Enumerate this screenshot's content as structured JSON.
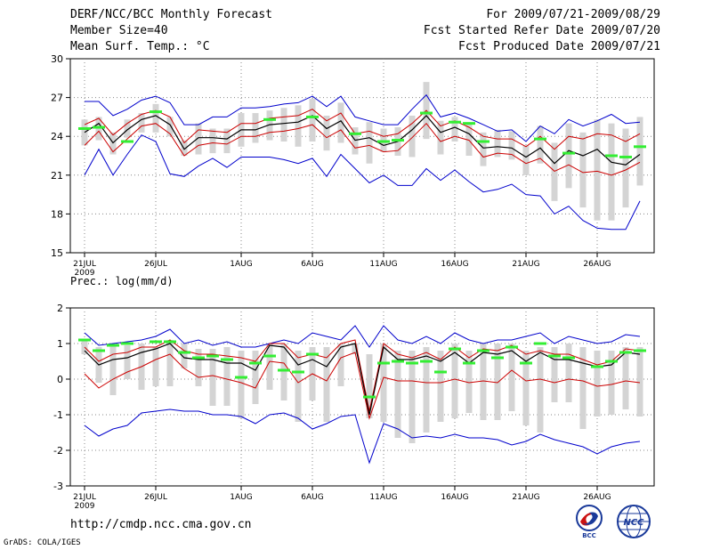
{
  "header": {
    "line1_left": "DERF/NCC/BCC Monthly Forecast",
    "line2_left": "Member Size=40",
    "line3_left": "Mean Surf. Temp.: °C",
    "line1_right": "For 2009/07/21-2009/08/29",
    "line2_right": "Fcst Started Refer Date 2009/07/20",
    "line3_right": "Fcst Produced Date 2009/07/21"
  },
  "prec_label": "Prec.: log(mm/d)",
  "footer": {
    "url": "http://cmdp.ncc.cma.gov.cn",
    "credit": "GrADS: COLA/IGES"
  },
  "logos": {
    "bcc": "BCC",
    "ncc": "NCC"
  },
  "colors": {
    "envelope": "#0000cc",
    "spread": "#cc0000",
    "mean": "#000000",
    "box": "#d4d4d4",
    "obs": "#33ee33",
    "grid": "#888888"
  },
  "chart_data": [
    {
      "type": "line",
      "title": "Mean Surf. Temp.: °C",
      "x_ticks": [
        "21JUL",
        "26JUL",
        "1AUG",
        "6AUG",
        "11AUG",
        "16AUG",
        "21AUG",
        "26AUG"
      ],
      "x_tick_day": [
        0,
        5,
        11,
        16,
        21,
        26,
        31,
        36
      ],
      "x_year": "2009",
      "n_days": 40,
      "ylim": [
        15,
        30
      ],
      "yticks": [
        15,
        18,
        21,
        24,
        27,
        30
      ],
      "series": [
        {
          "name": "max",
          "values": [
            26.7,
            26.7,
            25.6,
            26.1,
            26.8,
            27.1,
            26.6,
            24.9,
            24.9,
            25.5,
            25.5,
            26.2,
            26.2,
            26.3,
            26.5,
            26.6,
            27.1,
            26.3,
            27.1,
            25.5,
            25.2,
            24.9,
            24.9,
            26.1,
            27.2,
            25.5,
            25.8,
            25.4,
            24.9,
            24.4,
            24.5,
            23.6,
            24.8,
            24.2,
            25.3,
            24.8,
            25.2,
            25.7,
            25.0,
            25.1
          ]
        },
        {
          "name": "upper",
          "values": [
            24.9,
            25.4,
            24.1,
            25.0,
            25.7,
            26.0,
            25.5,
            23.5,
            24.5,
            24.4,
            24.3,
            25.0,
            25.0,
            25.4,
            25.5,
            25.6,
            26.1,
            25.2,
            25.8,
            24.2,
            24.4,
            24.0,
            24.2,
            25.0,
            26.0,
            24.8,
            25.2,
            24.7,
            24.0,
            23.8,
            23.8,
            23.2,
            24.0,
            23.0,
            24.0,
            23.8,
            24.2,
            24.1,
            23.6,
            24.2
          ]
        },
        {
          "name": "mean",
          "values": [
            24.3,
            25.0,
            23.5,
            24.5,
            25.3,
            25.6,
            24.9,
            23.0,
            23.9,
            23.9,
            23.8,
            24.5,
            24.5,
            24.9,
            25.0,
            25.1,
            25.6,
            24.6,
            25.2,
            23.7,
            23.9,
            23.3,
            23.6,
            24.5,
            25.6,
            24.3,
            24.7,
            24.2,
            23.1,
            23.2,
            23.1,
            22.4,
            23.1,
            21.9,
            22.9,
            22.5,
            23.0,
            22.0,
            21.8,
            22.6
          ]
        },
        {
          "name": "lower",
          "values": [
            23.3,
            24.4,
            22.8,
            23.8,
            24.8,
            25.0,
            24.2,
            22.5,
            23.3,
            23.5,
            23.4,
            24.0,
            24.0,
            24.3,
            24.4,
            24.6,
            24.9,
            23.9,
            24.5,
            23.1,
            23.3,
            22.8,
            22.9,
            23.9,
            25.0,
            23.6,
            24.0,
            23.7,
            22.4,
            22.7,
            22.6,
            21.9,
            22.3,
            21.3,
            21.8,
            21.2,
            21.3,
            21.0,
            21.4,
            22.0
          ]
        },
        {
          "name": "min",
          "values": [
            21.0,
            23.0,
            21.0,
            22.6,
            24.1,
            23.6,
            21.1,
            20.9,
            21.7,
            22.3,
            21.6,
            22.4,
            22.4,
            22.4,
            22.2,
            21.9,
            22.3,
            20.9,
            22.6,
            21.5,
            20.4,
            21.0,
            20.2,
            20.2,
            21.5,
            20.6,
            21.4,
            20.5,
            19.7,
            19.9,
            20.3,
            19.5,
            19.4,
            18.0,
            18.6,
            17.5,
            16.9,
            16.8,
            16.8,
            19.0
          ]
        },
        {
          "name": "box_high",
          "values": [
            25.3,
            25.5,
            24.3,
            25.3,
            25.8,
            26.5,
            25.5,
            23.7,
            25.0,
            24.6,
            24.6,
            25.8,
            25.8,
            26.0,
            26.2,
            26.4,
            26.9,
            25.6,
            26.6,
            24.7,
            25.1,
            24.6,
            24.7,
            25.6,
            28.2,
            25.2,
            25.5,
            25.0,
            24.3,
            24.5,
            24.4,
            23.3,
            24.8,
            23.5,
            25.0,
            24.3,
            25.3,
            25.0,
            24.6,
            25.5
          ]
        },
        {
          "name": "box_low",
          "values": [
            23.3,
            23.7,
            22.6,
            23.9,
            24.3,
            24.3,
            24.0,
            22.5,
            22.6,
            22.7,
            22.7,
            23.2,
            23.5,
            23.7,
            23.6,
            23.2,
            23.6,
            22.9,
            23.5,
            22.6,
            21.9,
            22.8,
            22.5,
            22.4,
            23.8,
            22.6,
            23.6,
            22.5,
            21.7,
            22.4,
            22.2,
            21.0,
            21.9,
            19.0,
            20.0,
            18.5,
            17.5,
            17.5,
            18.5,
            20.2
          ]
        },
        {
          "name": "observed",
          "values": [
            24.6,
            24.7,
            null,
            23.6,
            null,
            25.9,
            null,
            null,
            null,
            null,
            null,
            null,
            null,
            25.3,
            null,
            null,
            25.5,
            null,
            null,
            24.2,
            null,
            23.6,
            23.7,
            null,
            25.8,
            null,
            25.1,
            25.0,
            23.6,
            null,
            null,
            null,
            23.8,
            null,
            22.7,
            null,
            null,
            22.5,
            22.4,
            23.2
          ]
        }
      ]
    },
    {
      "type": "line",
      "title": "Prec.: log(mm/d)",
      "x_ticks": [
        "21JUL",
        "26JUL",
        "1AUG",
        "6AUG",
        "11AUG",
        "16AUG",
        "21AUG",
        "26AUG"
      ],
      "x_tick_day": [
        0,
        5,
        11,
        16,
        21,
        26,
        31,
        36
      ],
      "x_year": "2009",
      "n_days": 40,
      "ylim": [
        -3,
        2
      ],
      "yticks": [
        -3,
        -2,
        -1,
        0,
        1,
        2
      ],
      "series": [
        {
          "name": "max",
          "values": [
            1.3,
            0.95,
            1.0,
            1.05,
            1.1,
            1.2,
            1.4,
            1.0,
            1.1,
            0.95,
            1.05,
            0.9,
            0.9,
            1.0,
            1.1,
            1.0,
            1.3,
            1.2,
            1.1,
            1.5,
            0.9,
            1.5,
            1.1,
            1.0,
            1.2,
            1.0,
            1.3,
            1.1,
            1.0,
            1.1,
            1.1,
            1.2,
            1.3,
            1.0,
            1.2,
            1.1,
            1.0,
            1.05,
            1.25,
            1.2
          ]
        },
        {
          "name": "upper",
          "values": [
            0.9,
            0.5,
            0.7,
            0.75,
            0.9,
            0.9,
            1.1,
            0.8,
            0.7,
            0.7,
            0.65,
            0.6,
            0.5,
            1.0,
            1.0,
            0.6,
            0.7,
            0.6,
            1.0,
            1.1,
            -0.9,
            1.0,
            0.7,
            0.6,
            0.75,
            0.55,
            0.9,
            0.6,
            0.85,
            0.8,
            0.95,
            0.7,
            0.8,
            0.7,
            0.7,
            0.55,
            0.4,
            0.5,
            0.85,
            0.8
          ]
        },
        {
          "name": "mean",
          "values": [
            0.8,
            0.4,
            0.55,
            0.6,
            0.75,
            0.85,
            1.0,
            0.6,
            0.55,
            0.55,
            0.45,
            0.45,
            0.25,
            0.95,
            0.9,
            0.4,
            0.55,
            0.35,
            0.9,
            1.0,
            -1.0,
            0.9,
            0.55,
            0.55,
            0.65,
            0.5,
            0.75,
            0.45,
            0.75,
            0.7,
            0.8,
            0.5,
            0.75,
            0.55,
            0.55,
            0.45,
            0.35,
            0.4,
            0.75,
            0.7
          ]
        },
        {
          "name": "lower",
          "values": [
            0.15,
            -0.25,
            0.0,
            0.2,
            0.35,
            0.55,
            0.7,
            0.3,
            0.05,
            0.1,
            0.0,
            -0.1,
            -0.25,
            0.5,
            0.45,
            -0.1,
            0.15,
            -0.05,
            0.6,
            0.75,
            -1.1,
            0.05,
            -0.05,
            -0.05,
            -0.1,
            -0.1,
            0.0,
            -0.1,
            -0.05,
            -0.1,
            0.25,
            -0.05,
            0.0,
            -0.1,
            0.0,
            -0.05,
            -0.2,
            -0.15,
            -0.05,
            -0.1
          ]
        },
        {
          "name": "min",
          "values": [
            -1.3,
            -1.6,
            -1.4,
            -1.3,
            -0.95,
            -0.9,
            -0.85,
            -0.9,
            -0.9,
            -1.0,
            -1.0,
            -1.05,
            -1.25,
            -1.0,
            -0.95,
            -1.1,
            -1.4,
            -1.25,
            -1.05,
            -1.0,
            -2.35,
            -1.25,
            -1.4,
            -1.65,
            -1.6,
            -1.65,
            -1.55,
            -1.65,
            -1.65,
            -1.7,
            -1.85,
            -1.75,
            -1.55,
            -1.7,
            -1.8,
            -1.9,
            -2.1,
            -1.9,
            -1.8,
            -1.75
          ]
        },
        {
          "name": "box_high",
          "values": [
            1.1,
            0.9,
            1.0,
            0.95,
            1.0,
            0.9,
            1.1,
            1.0,
            0.85,
            0.85,
            0.9,
            0.8,
            0.8,
            1.0,
            1.0,
            0.8,
            0.9,
            0.9,
            1.0,
            1.0,
            0.7,
            1.0,
            0.8,
            0.8,
            0.9,
            0.8,
            1.0,
            0.8,
            1.0,
            1.0,
            1.0,
            0.8,
            0.9,
            0.9,
            1.0,
            0.9,
            0.8,
            0.8,
            0.9,
            0.9
          ]
        },
        {
          "name": "box_low",
          "values": [
            0.7,
            -0.1,
            -0.45,
            0.0,
            -0.3,
            -0.2,
            -0.2,
            0.3,
            -0.2,
            -0.75,
            -0.75,
            -1.1,
            -0.7,
            -0.3,
            -0.6,
            -1.2,
            -0.6,
            -1.2,
            -0.2,
            0.7,
            -1.1,
            -1.2,
            -1.65,
            -1.8,
            -1.5,
            -1.2,
            -1.1,
            -0.95,
            -1.15,
            -1.15,
            -0.9,
            -1.3,
            -1.5,
            -0.65,
            -0.65,
            -1.4,
            -1.05,
            -1.0,
            -0.85,
            -1.05
          ]
        },
        {
          "name": "observed",
          "values": [
            1.1,
            0.8,
            0.95,
            1.0,
            null,
            1.05,
            1.05,
            0.75,
            0.6,
            0.65,
            0.55,
            0.05,
            0.45,
            0.65,
            0.25,
            0.2,
            0.7,
            null,
            null,
            null,
            -0.5,
            0.45,
            0.5,
            0.45,
            0.5,
            0.2,
            0.85,
            0.45,
            0.8,
            0.6,
            0.9,
            0.45,
            1.0,
            0.65,
            0.6,
            null,
            0.35,
            0.5,
            0.75,
            0.8
          ]
        }
      ]
    }
  ]
}
